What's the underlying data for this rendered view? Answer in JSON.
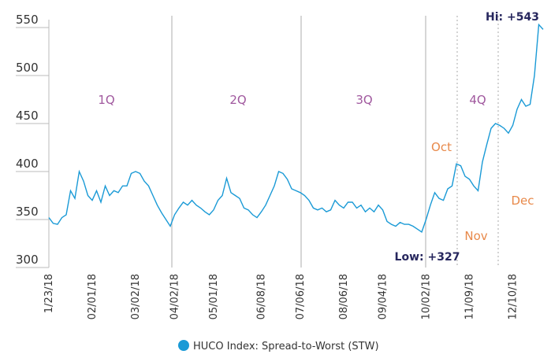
{
  "chart_data": {
    "type": "line",
    "categories": [
      "1/23/18",
      null,
      null,
      null,
      null,
      null,
      null,
      null,
      null,
      null,
      "02/01/18",
      null,
      null,
      null,
      null,
      null,
      null,
      null,
      null,
      null,
      "03/02/18",
      null,
      null,
      null,
      null,
      null,
      null,
      null,
      null,
      "04/02/18",
      null,
      null,
      null,
      null,
      null,
      null,
      null,
      null,
      "05/01/18",
      null,
      null,
      null,
      null,
      null,
      null,
      null,
      null,
      null,
      null,
      "06/08/18",
      null,
      null,
      null,
      null,
      null,
      null,
      null,
      null,
      "07/06/18",
      null,
      null,
      null,
      null,
      null,
      null,
      null,
      null,
      null,
      "08/06/18",
      null,
      null,
      null,
      null,
      null,
      null,
      null,
      null,
      "09/04/18",
      null,
      null,
      null,
      null,
      null,
      null,
      null,
      null,
      null,
      "10/02/18",
      null,
      null,
      null,
      null,
      null,
      null,
      null,
      null,
      null,
      "11/09/18",
      null,
      null,
      null,
      null,
      null,
      null,
      null,
      null,
      null,
      "12/10/18",
      null,
      null,
      null,
      null,
      null,
      null,
      null
    ],
    "series": [
      {
        "name": "HUCO Index: Spread-to-Worst (STW)",
        "color": "#1a9ad6",
        "values": [
          352,
          346,
          345,
          352,
          355,
          380,
          372,
          400,
          390,
          375,
          370,
          380,
          368,
          385,
          375,
          380,
          378,
          385,
          385,
          398,
          400,
          398,
          390,
          385,
          375,
          365,
          357,
          350,
          343,
          355,
          362,
          368,
          365,
          370,
          365,
          362,
          358,
          355,
          360,
          370,
          375,
          393,
          378,
          375,
          372,
          362,
          360,
          355,
          352,
          358,
          365,
          375,
          385,
          400,
          398,
          392,
          382,
          380,
          378,
          375,
          370,
          362,
          360,
          362,
          358,
          360,
          370,
          365,
          362,
          368,
          368,
          362,
          365,
          358,
          362,
          358,
          365,
          360,
          348,
          345,
          343,
          347,
          345,
          345,
          343,
          340,
          337,
          350,
          365,
          378,
          372,
          370,
          382,
          385,
          408,
          406,
          395,
          392,
          385,
          380,
          410,
          428,
          445,
          450,
          448,
          445,
          440,
          448,
          465,
          475,
          468,
          470,
          500,
          553,
          548
        ]
      }
    ],
    "ylim": [
      300,
      550
    ],
    "yticks": [
      300,
      350,
      400,
      450,
      500,
      550
    ],
    "quarters": [
      "1Q",
      "2Q",
      "3Q",
      "4Q"
    ],
    "months": [
      "Oct",
      "Nov",
      "Dec"
    ],
    "annotations": [
      "Hi: +543",
      "Low: +327"
    ],
    "legend": "bottom"
  }
}
